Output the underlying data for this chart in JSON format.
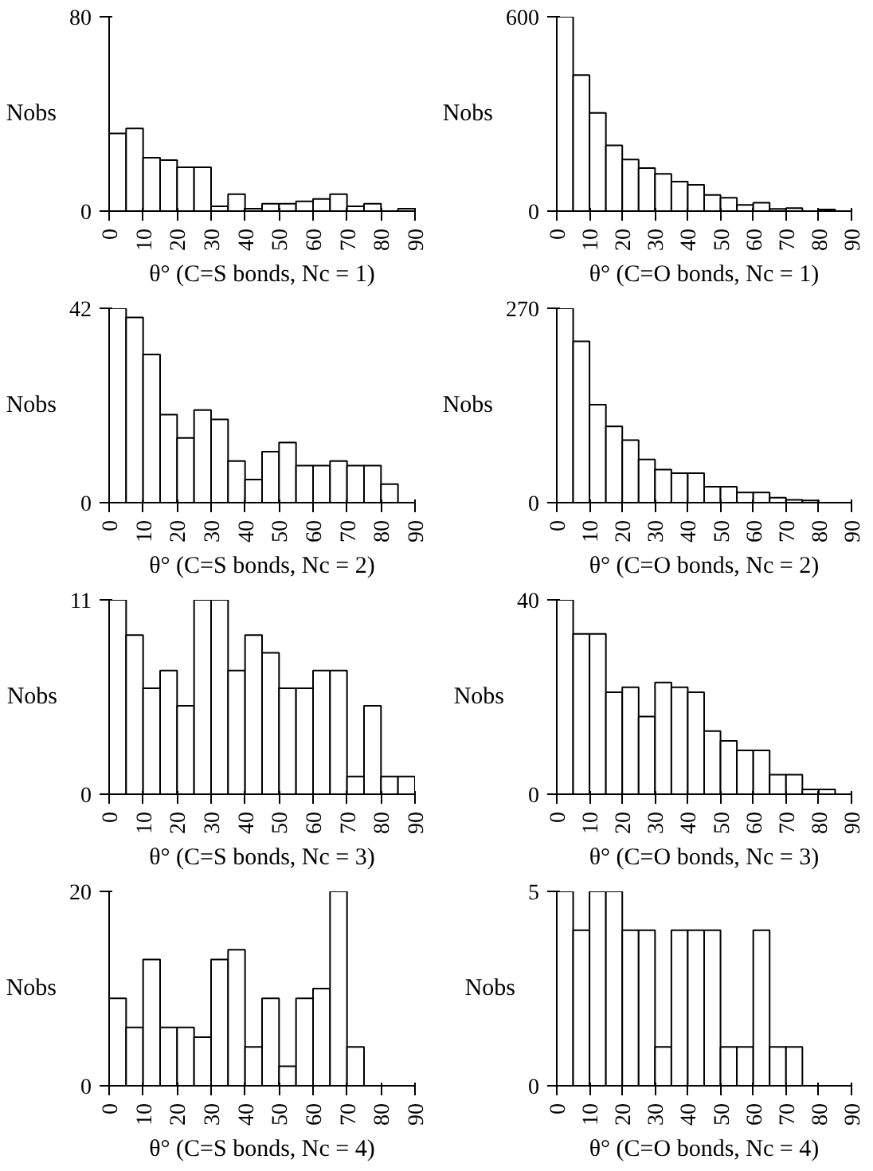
{
  "chart_data": [
    {
      "type": "histogram",
      "bins": [
        0,
        5,
        10,
        15,
        20,
        25,
        30,
        35,
        40,
        45,
        50,
        55,
        60,
        65,
        70,
        75,
        80,
        85,
        90
      ],
      "values": [
        32,
        34,
        22,
        21,
        18,
        18,
        2,
        7,
        1,
        3,
        3,
        4,
        5,
        7,
        2,
        3,
        0,
        1
      ],
      "xlim": [
        0,
        90
      ],
      "xticks": [
        0,
        10,
        20,
        30,
        40,
        50,
        60,
        70,
        80,
        90
      ],
      "ylim": [
        0,
        80
      ],
      "yticks": [
        0,
        80
      ],
      "xlabel": "θ° (C=S bonds, Nc = 1)",
      "ylabel": "Nobs"
    },
    {
      "type": "histogram",
      "bins": [
        0,
        5,
        10,
        15,
        20,
        25,
        30,
        35,
        40,
        45,
        50,
        55,
        60,
        65,
        70,
        75,
        80,
        85,
        90
      ],
      "values": [
        600,
        420,
        303,
        203,
        159,
        133,
        115,
        91,
        81,
        50,
        41,
        19,
        26,
        7,
        9,
        null,
        5,
        null
      ],
      "xlim": [
        0,
        90
      ],
      "xticks": [
        0,
        10,
        20,
        30,
        40,
        50,
        60,
        70,
        80,
        90
      ],
      "ylim": [
        0,
        600
      ],
      "yticks": [
        0,
        600
      ],
      "xlabel": "θ° (C=O bonds, Nc = 1)",
      "ylabel": "Nobs"
    },
    {
      "type": "histogram",
      "bins": [
        0,
        5,
        10,
        15,
        20,
        25,
        30,
        35,
        40,
        45,
        50,
        55,
        60,
        65,
        70,
        75,
        80,
        85,
        90
      ],
      "values": [
        42,
        40,
        32,
        19,
        14,
        20,
        18,
        9,
        5,
        11,
        13,
        8,
        8,
        9,
        8,
        8,
        4,
        0
      ],
      "xlim": [
        0,
        90
      ],
      "xticks": [
        0,
        10,
        20,
        30,
        40,
        50,
        60,
        70,
        80,
        90
      ],
      "ylim": [
        0,
        42
      ],
      "yticks": [
        0,
        42
      ],
      "xlabel": "θ° (C=S bonds, Nc = 2)",
      "ylabel": "Nobs"
    },
    {
      "type": "histogram",
      "bins": [
        0,
        5,
        10,
        15,
        20,
        25,
        30,
        35,
        40,
        45,
        50,
        55,
        60,
        65,
        70,
        75,
        80,
        85,
        90
      ],
      "values": [
        270,
        224,
        136,
        106,
        87,
        60,
        46,
        41,
        41,
        22,
        22,
        14,
        14,
        7,
        4,
        3,
        null,
        null
      ],
      "xlim": [
        0,
        90
      ],
      "xticks": [
        0,
        10,
        20,
        30,
        40,
        50,
        60,
        70,
        80,
        90
      ],
      "ylim": [
        0,
        270
      ],
      "yticks": [
        0,
        270
      ],
      "xlabel": "θ° (C=O bonds, Nc = 2)",
      "ylabel": "Nobs"
    },
    {
      "type": "histogram",
      "bins": [
        0,
        5,
        10,
        15,
        20,
        25,
        30,
        35,
        40,
        45,
        50,
        55,
        60,
        65,
        70,
        75,
        80,
        85,
        90
      ],
      "values": [
        11,
        9,
        6,
        7,
        5,
        11,
        11,
        7,
        9,
        8,
        6,
        6,
        7,
        7,
        1,
        5,
        1,
        1
      ],
      "xlim": [
        0,
        90
      ],
      "xticks": [
        0,
        10,
        20,
        30,
        40,
        50,
        60,
        70,
        80,
        90
      ],
      "ylim": [
        0,
        11
      ],
      "yticks": [
        0,
        11
      ],
      "xlabel": "θ° (C=S bonds, Nc = 3)",
      "ylabel": "Nobs"
    },
    {
      "type": "histogram",
      "bins": [
        0,
        5,
        10,
        15,
        20,
        25,
        30,
        35,
        40,
        45,
        50,
        55,
        60,
        65,
        70,
        75,
        80,
        85,
        90
      ],
      "values": [
        40,
        33,
        33,
        21,
        22,
        16,
        23,
        22,
        21,
        13,
        11,
        9,
        9,
        4,
        4,
        1,
        1,
        0
      ],
      "xlim": [
        0,
        90
      ],
      "xticks": [
        0,
        10,
        20,
        30,
        40,
        50,
        60,
        70,
        80,
        90
      ],
      "ylim": [
        0,
        40
      ],
      "yticks": [
        0,
        40
      ],
      "xlabel": "θ° (C=O bonds, Nc = 3)",
      "ylabel": "Nobs"
    },
    {
      "type": "histogram",
      "bins": [
        0,
        5,
        10,
        15,
        20,
        25,
        30,
        35,
        40,
        45,
        50,
        55,
        60,
        65,
        70,
        75,
        80,
        85,
        90
      ],
      "values": [
        9,
        6,
        13,
        6,
        6,
        5,
        13,
        14,
        4,
        9,
        2,
        9,
        10,
        20,
        4,
        0,
        0,
        0
      ],
      "xlim": [
        0,
        90
      ],
      "xticks": [
        0,
        10,
        20,
        30,
        40,
        50,
        60,
        70,
        80,
        90
      ],
      "ylim": [
        0,
        20
      ],
      "yticks": [
        0,
        20
      ],
      "xlabel": "θ° (C=S bonds, Nc = 4)",
      "ylabel": "Nobs"
    },
    {
      "type": "histogram",
      "bins": [
        0,
        5,
        10,
        15,
        20,
        25,
        30,
        35,
        40,
        45,
        50,
        55,
        60,
        65,
        70,
        75,
        80,
        85,
        90
      ],
      "values": [
        5,
        4,
        5,
        5,
        4,
        4,
        1,
        4,
        4,
        4,
        1,
        1,
        4,
        1,
        1,
        0,
        0,
        0
      ],
      "xlim": [
        0,
        90
      ],
      "xticks": [
        0,
        10,
        20,
        30,
        40,
        50,
        60,
        70,
        80,
        90
      ],
      "ylim": [
        0,
        5
      ],
      "yticks": [
        0,
        5
      ],
      "xlabel": "θ° (C=O bonds, Nc = 4)",
      "ylabel": "Nobs"
    }
  ]
}
